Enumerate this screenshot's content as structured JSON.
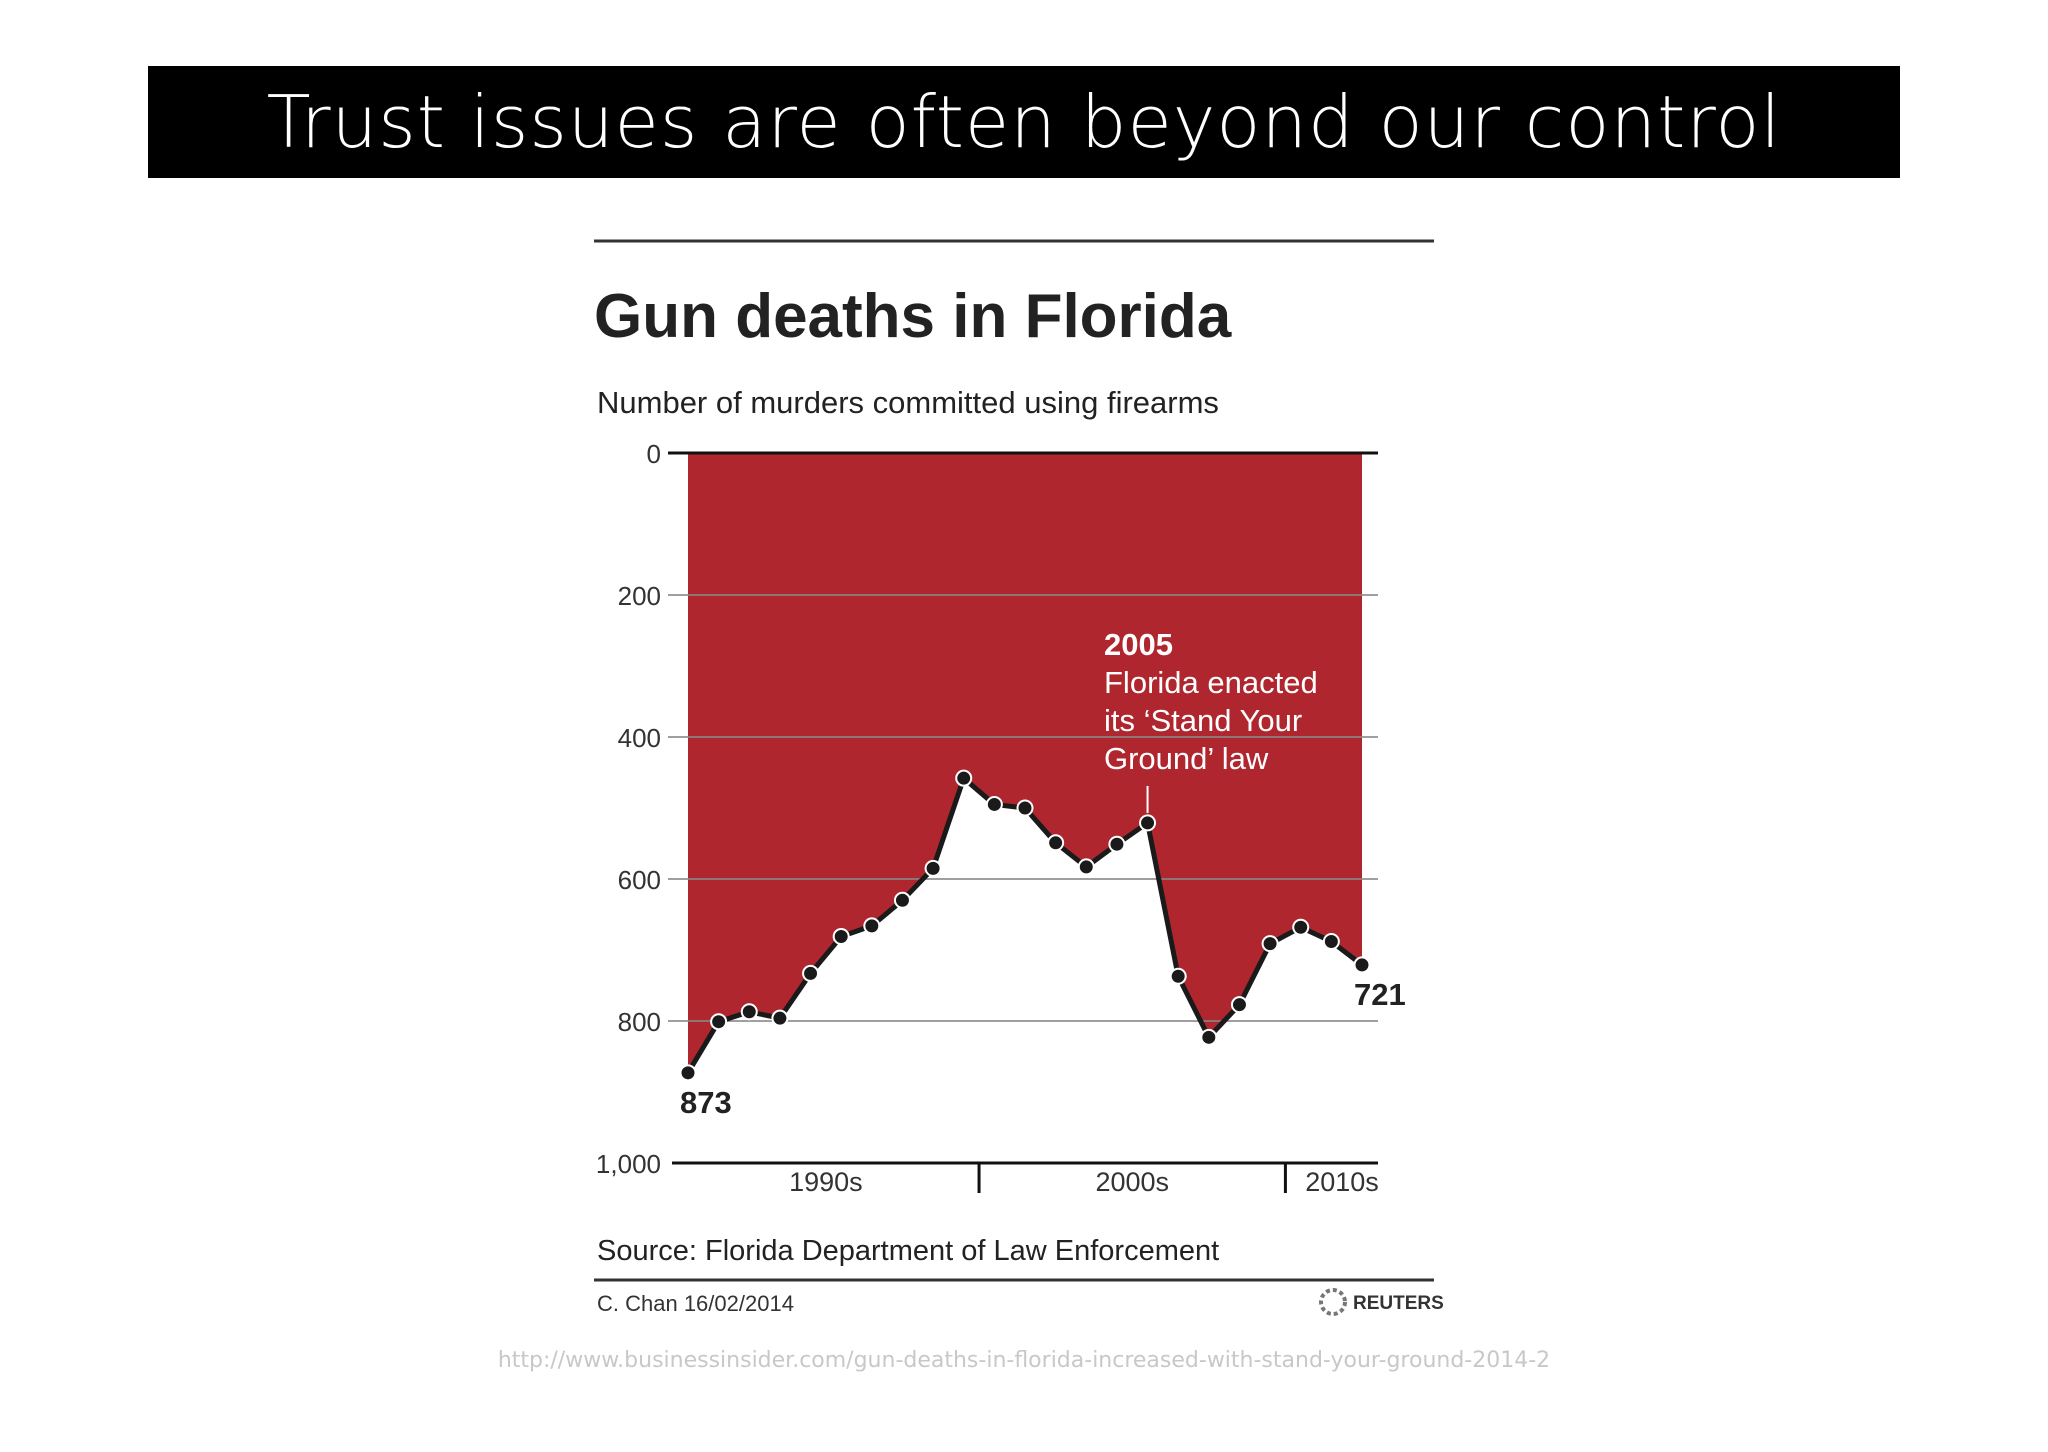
{
  "banner": {
    "title": "Trust issues are often beyond our control"
  },
  "chart_data": {
    "type": "area",
    "title": "Gun deaths in Florida",
    "subtitle": "Number of murders committed using firearms",
    "y_axis": {
      "min": 0,
      "max": 1000,
      "inverted": true,
      "ticks": [
        "0",
        "200",
        "400",
        "600",
        "800",
        "1,000"
      ],
      "tick_values": [
        0,
        200,
        400,
        600,
        800,
        1000
      ]
    },
    "x_axis": {
      "min": 1990,
      "max": 2012,
      "decades": [
        {
          "label": "1990s",
          "start": 1990,
          "end": 1999
        },
        {
          "label": "2000s",
          "start": 2000,
          "end": 2009
        },
        {
          "label": "2010s",
          "start": 2010,
          "end": 2012
        }
      ]
    },
    "series": [
      {
        "x": [
          1990,
          1991,
          1992,
          1993,
          1994,
          1995,
          1996,
          1997,
          1998,
          1999,
          2000,
          2001,
          2002,
          2003,
          2004,
          2005,
          2006,
          2007,
          2008,
          2009,
          2010,
          2011,
          2012
        ],
        "values": [
          873,
          801,
          787,
          796,
          733,
          681,
          666,
          630,
          585,
          458,
          495,
          500,
          549,
          583,
          551,
          521,
          737,
          823,
          777,
          691,
          668,
          688,
          721
        ]
      }
    ],
    "point_labels": [
      {
        "x": 1990,
        "value": 873,
        "text": "873"
      },
      {
        "x": 2012,
        "value": 721,
        "text": "721"
      }
    ],
    "annotation": {
      "x": 2005,
      "year": "2005",
      "lines": [
        "Florida enacted",
        "its ‘Stand Your",
        "Ground’ law"
      ]
    },
    "source": "Source: Florida Department of Law Enforcement",
    "credit": "C. Chan  16/02/2014",
    "logo": "REUTERS",
    "colors": {
      "fill": "#b0262f",
      "line": "#1a1a1a",
      "grid": "#888888",
      "text": "#222222"
    }
  },
  "footer": {
    "url": "http://www.businessinsider.com/gun-deaths-in-florida-increased-with-stand-your-ground-2014-2"
  }
}
